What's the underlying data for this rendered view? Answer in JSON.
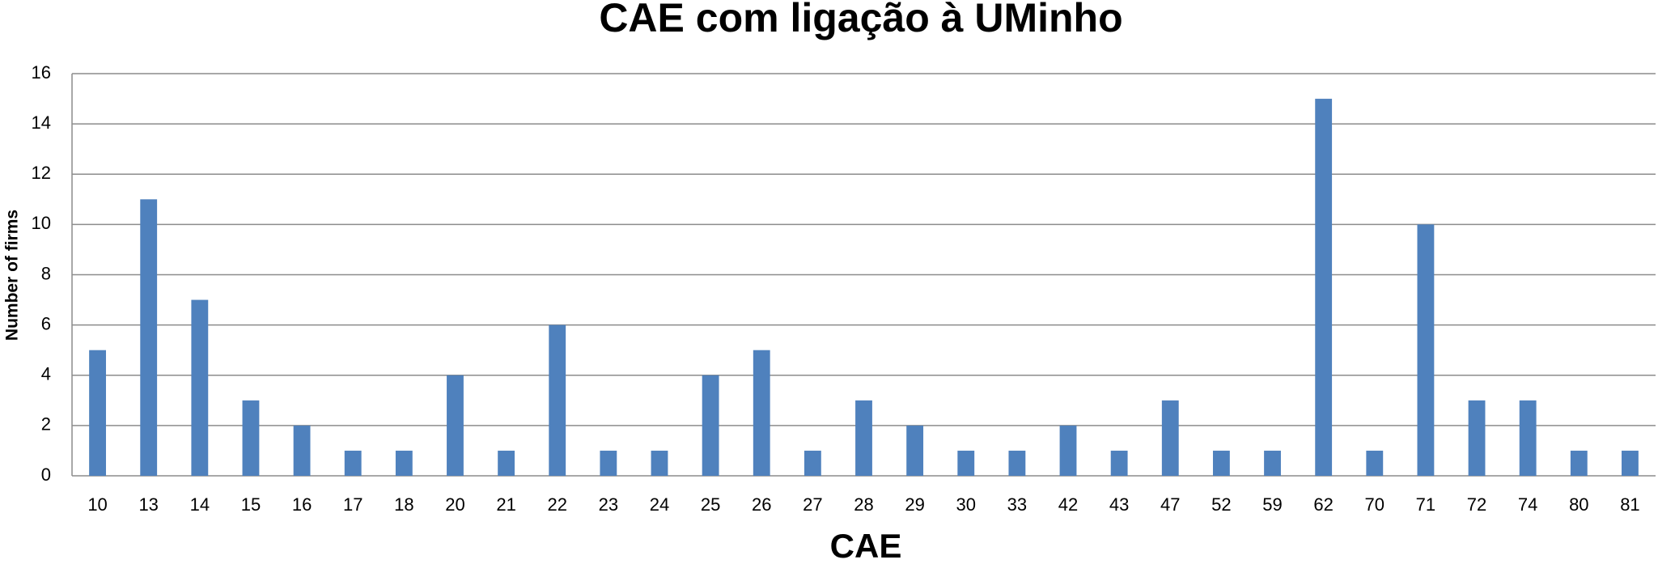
{
  "chart_data": {
    "type": "bar",
    "title": "CAE com ligação à UMinho",
    "x_label": "CAE",
    "y_label": "Number  of firms",
    "categories": [
      "10",
      "13",
      "14",
      "15",
      "16",
      "17",
      "18",
      "20",
      "21",
      "22",
      "23",
      "24",
      "25",
      "26",
      "27",
      "28",
      "29",
      "30",
      "33",
      "42",
      "43",
      "47",
      "52",
      "59",
      "62",
      "70",
      "71",
      "72",
      "74",
      "80",
      "81"
    ],
    "values": [
      5,
      11,
      7,
      3,
      2,
      1,
      1,
      4,
      1,
      6,
      1,
      1,
      4,
      5,
      1,
      3,
      2,
      1,
      1,
      2,
      1,
      3,
      1,
      1,
      15,
      1,
      10,
      3,
      3,
      1,
      1
    ],
    "color": "#4f81bd",
    "ylim": [
      0,
      16
    ],
    "yticks": [
      0,
      2,
      4,
      6,
      8,
      10,
      12,
      14,
      16
    ],
    "grid": true
  }
}
